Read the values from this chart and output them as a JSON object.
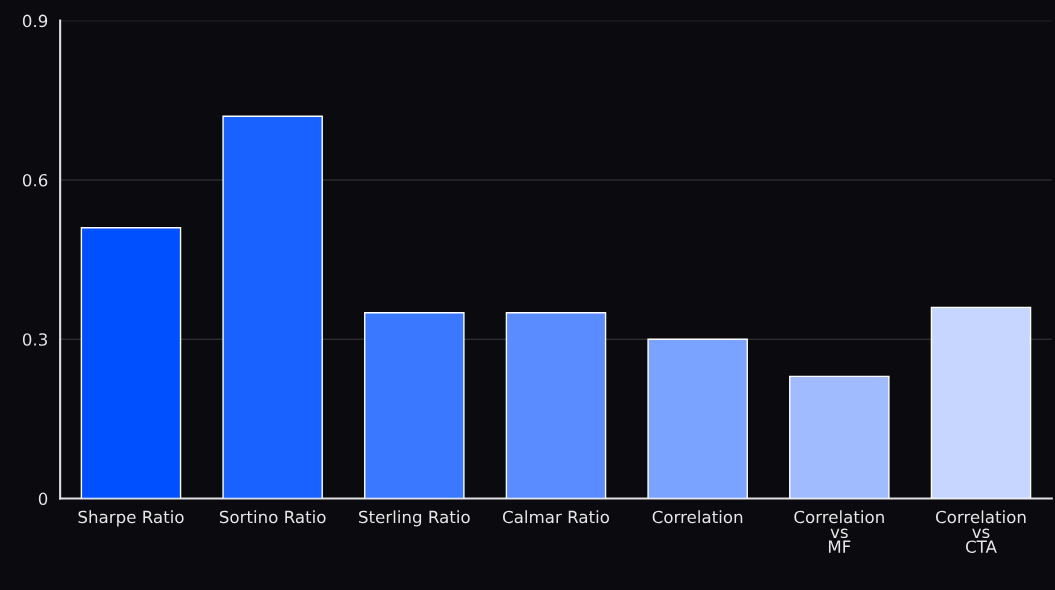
{
  "chart_data": {
    "type": "bar",
    "categories": [
      "Sharpe Ratio",
      "Sortino Ratio",
      "Sterling Ratio",
      "Calmar Ratio",
      "Correlation",
      "Correlation\nvs\nMF",
      "Correlation\nvs\nCTA"
    ],
    "values": [
      0.51,
      0.72,
      0.35,
      0.35,
      0.3,
      0.23,
      0.36
    ],
    "colors": [
      "#0050ff",
      "#1a62ff",
      "#3a78ff",
      "#5a8cff",
      "#7aa2ff",
      "#a0bcff",
      "#c6d6ff"
    ],
    "ylim": [
      0,
      0.9
    ],
    "yticks": [
      0,
      0.3,
      0.6,
      0.9
    ],
    "grid": "y",
    "legend": false
  }
}
